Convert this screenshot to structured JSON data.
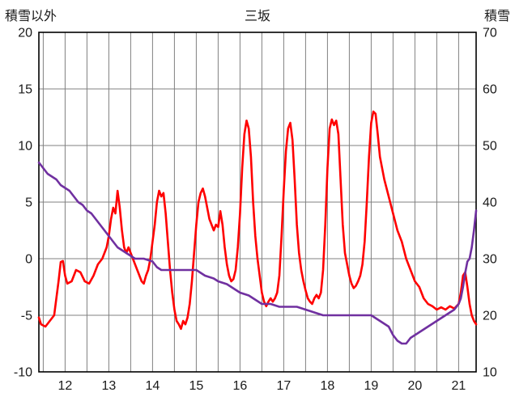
{
  "header": {
    "left_axis_title": "積雪以外",
    "title": "三坂",
    "right_axis_title": "積雪"
  },
  "chart_data": {
    "type": "line",
    "title": "三坂",
    "x_axis": {
      "min": 11.4,
      "max": 21.4,
      "ticks": [
        12,
        13,
        14,
        15,
        16,
        17,
        18,
        19,
        20,
        21
      ],
      "grid_step": 0.5
    },
    "y_left_axis": {
      "label": "積雪以外",
      "min": -10,
      "max": 20,
      "ticks": [
        20,
        15,
        10,
        5,
        0,
        -5,
        -10
      ]
    },
    "y_right_axis": {
      "label": "積雪",
      "min": 10,
      "max": 70,
      "ticks": [
        70,
        60,
        50,
        40,
        30,
        20,
        10
      ]
    },
    "grid": true,
    "grid_color": "#808080",
    "border_color": "#000000",
    "legend_position": "none",
    "series": [
      {
        "name": "積雪以外",
        "axis": "left",
        "color": "#FF0000",
        "points": [
          [
            11.4,
            -5.2
          ],
          [
            11.45,
            -5.8
          ],
          [
            11.55,
            -6.0
          ],
          [
            11.65,
            -5.5
          ],
          [
            11.75,
            -5.0
          ],
          [
            11.85,
            -2.0
          ],
          [
            11.9,
            -0.3
          ],
          [
            11.95,
            -0.2
          ],
          [
            12.0,
            -1.5
          ],
          [
            12.05,
            -2.2
          ],
          [
            12.15,
            -2.0
          ],
          [
            12.25,
            -1.0
          ],
          [
            12.35,
            -1.2
          ],
          [
            12.45,
            -2.0
          ],
          [
            12.55,
            -2.2
          ],
          [
            12.65,
            -1.5
          ],
          [
            12.75,
            -0.5
          ],
          [
            12.85,
            0.0
          ],
          [
            12.95,
            1.0
          ],
          [
            13.0,
            2.0
          ],
          [
            13.05,
            3.5
          ],
          [
            13.1,
            4.5
          ],
          [
            13.15,
            4.0
          ],
          [
            13.2,
            6.0
          ],
          [
            13.25,
            4.5
          ],
          [
            13.3,
            2.5
          ],
          [
            13.35,
            1.0
          ],
          [
            13.4,
            0.5
          ],
          [
            13.45,
            1.0
          ],
          [
            13.5,
            0.5
          ],
          [
            13.55,
            0.0
          ],
          [
            13.6,
            -0.5
          ],
          [
            13.65,
            -1.0
          ],
          [
            13.7,
            -1.5
          ],
          [
            13.75,
            -2.0
          ],
          [
            13.8,
            -2.2
          ],
          [
            13.85,
            -1.5
          ],
          [
            13.9,
            -1.0
          ],
          [
            13.95,
            0.0
          ],
          [
            14.0,
            1.5
          ],
          [
            14.05,
            3.0
          ],
          [
            14.1,
            5.0
          ],
          [
            14.15,
            6.0
          ],
          [
            14.2,
            5.5
          ],
          [
            14.25,
            5.8
          ],
          [
            14.3,
            4.0
          ],
          [
            14.35,
            1.5
          ],
          [
            14.4,
            -1.0
          ],
          [
            14.45,
            -3.0
          ],
          [
            14.5,
            -4.5
          ],
          [
            14.55,
            -5.5
          ],
          [
            14.6,
            -5.8
          ],
          [
            14.65,
            -6.2
          ],
          [
            14.7,
            -5.5
          ],
          [
            14.75,
            -5.8
          ],
          [
            14.8,
            -5.2
          ],
          [
            14.85,
            -4.0
          ],
          [
            14.9,
            -2.0
          ],
          [
            14.95,
            0.5
          ],
          [
            15.0,
            3.0
          ],
          [
            15.05,
            5.0
          ],
          [
            15.1,
            5.8
          ],
          [
            15.15,
            6.2
          ],
          [
            15.2,
            5.5
          ],
          [
            15.25,
            4.5
          ],
          [
            15.3,
            3.5
          ],
          [
            15.35,
            3.0
          ],
          [
            15.4,
            2.5
          ],
          [
            15.45,
            3.0
          ],
          [
            15.5,
            2.8
          ],
          [
            15.55,
            4.2
          ],
          [
            15.6,
            3.0
          ],
          [
            15.65,
            1.0
          ],
          [
            15.7,
            -0.5
          ],
          [
            15.75,
            -1.5
          ],
          [
            15.8,
            -2.0
          ],
          [
            15.85,
            -1.8
          ],
          [
            15.9,
            -1.0
          ],
          [
            15.95,
            1.0
          ],
          [
            16.0,
            4.0
          ],
          [
            16.05,
            8.0
          ],
          [
            16.1,
            11.0
          ],
          [
            16.15,
            12.2
          ],
          [
            16.2,
            11.5
          ],
          [
            16.25,
            9.0
          ],
          [
            16.3,
            5.0
          ],
          [
            16.35,
            2.0
          ],
          [
            16.4,
            0.0
          ],
          [
            16.45,
            -1.5
          ],
          [
            16.5,
            -3.0
          ],
          [
            16.55,
            -3.8
          ],
          [
            16.6,
            -4.2
          ],
          [
            16.65,
            -3.8
          ],
          [
            16.7,
            -3.5
          ],
          [
            16.75,
            -3.8
          ],
          [
            16.8,
            -3.5
          ],
          [
            16.85,
            -3.0
          ],
          [
            16.9,
            -1.5
          ],
          [
            16.95,
            2.0
          ],
          [
            17.0,
            6.0
          ],
          [
            17.05,
            9.5
          ],
          [
            17.1,
            11.5
          ],
          [
            17.15,
            12.0
          ],
          [
            17.2,
            10.5
          ],
          [
            17.25,
            7.0
          ],
          [
            17.3,
            3.0
          ],
          [
            17.35,
            0.5
          ],
          [
            17.4,
            -1.0
          ],
          [
            17.45,
            -2.0
          ],
          [
            17.5,
            -2.8
          ],
          [
            17.55,
            -3.5
          ],
          [
            17.6,
            -3.8
          ],
          [
            17.65,
            -4.0
          ],
          [
            17.7,
            -3.5
          ],
          [
            17.75,
            -3.2
          ],
          [
            17.8,
            -3.5
          ],
          [
            17.85,
            -3.0
          ],
          [
            17.9,
            -1.0
          ],
          [
            17.95,
            3.0
          ],
          [
            18.0,
            8.0
          ],
          [
            18.05,
            11.5
          ],
          [
            18.1,
            12.3
          ],
          [
            18.15,
            11.8
          ],
          [
            18.2,
            12.2
          ],
          [
            18.25,
            11.0
          ],
          [
            18.3,
            7.0
          ],
          [
            18.35,
            3.0
          ],
          [
            18.4,
            0.5
          ],
          [
            18.45,
            -0.5
          ],
          [
            18.5,
            -1.5
          ],
          [
            18.55,
            -2.2
          ],
          [
            18.6,
            -2.6
          ],
          [
            18.65,
            -2.4
          ],
          [
            18.7,
            -2.0
          ],
          [
            18.75,
            -1.5
          ],
          [
            18.8,
            -0.5
          ],
          [
            18.85,
            1.5
          ],
          [
            18.9,
            5.0
          ],
          [
            18.95,
            9.0
          ],
          [
            19.0,
            12.0
          ],
          [
            19.05,
            13.0
          ],
          [
            19.1,
            12.8
          ],
          [
            19.15,
            11.0
          ],
          [
            19.2,
            9.0
          ],
          [
            19.25,
            8.0
          ],
          [
            19.3,
            7.0
          ],
          [
            19.4,
            5.5
          ],
          [
            19.5,
            4.0
          ],
          [
            19.6,
            2.5
          ],
          [
            19.7,
            1.5
          ],
          [
            19.8,
            0.0
          ],
          [
            19.9,
            -1.0
          ],
          [
            20.0,
            -2.0
          ],
          [
            20.1,
            -2.5
          ],
          [
            20.2,
            -3.5
          ],
          [
            20.3,
            -4.0
          ],
          [
            20.4,
            -4.2
          ],
          [
            20.5,
            -4.5
          ],
          [
            20.6,
            -4.3
          ],
          [
            20.7,
            -4.5
          ],
          [
            20.8,
            -4.2
          ],
          [
            20.9,
            -4.4
          ],
          [
            21.0,
            -4.0
          ],
          [
            21.05,
            -3.0
          ],
          [
            21.1,
            -1.5
          ],
          [
            21.15,
            -1.2
          ],
          [
            21.2,
            -2.5
          ],
          [
            21.25,
            -4.0
          ],
          [
            21.3,
            -5.0
          ],
          [
            21.35,
            -5.5
          ],
          [
            21.4,
            -5.8
          ]
        ]
      },
      {
        "name": "積雪",
        "axis": "right",
        "color": "#7030A0",
        "points": [
          [
            11.4,
            47
          ],
          [
            11.5,
            46
          ],
          [
            11.6,
            45
          ],
          [
            11.7,
            44.5
          ],
          [
            11.8,
            44
          ],
          [
            11.9,
            43
          ],
          [
            12.0,
            42.5
          ],
          [
            12.1,
            42
          ],
          [
            12.2,
            41
          ],
          [
            12.3,
            40
          ],
          [
            12.4,
            39.5
          ],
          [
            12.5,
            38.5
          ],
          [
            12.6,
            38
          ],
          [
            12.7,
            37
          ],
          [
            12.8,
            36
          ],
          [
            12.9,
            35
          ],
          [
            13.0,
            34
          ],
          [
            13.1,
            33
          ],
          [
            13.2,
            32
          ],
          [
            13.3,
            31.5
          ],
          [
            13.4,
            31
          ],
          [
            13.5,
            30.5
          ],
          [
            13.6,
            30
          ],
          [
            13.8,
            30
          ],
          [
            14.0,
            29.5
          ],
          [
            14.1,
            28.5
          ],
          [
            14.2,
            28
          ],
          [
            14.4,
            28
          ],
          [
            14.6,
            28
          ],
          [
            14.8,
            28
          ],
          [
            15.0,
            28
          ],
          [
            15.1,
            27.5
          ],
          [
            15.2,
            27
          ],
          [
            15.4,
            26.5
          ],
          [
            15.5,
            26
          ],
          [
            15.7,
            25.5
          ],
          [
            15.8,
            25
          ],
          [
            16.0,
            24
          ],
          [
            16.2,
            23.5
          ],
          [
            16.3,
            23
          ],
          [
            16.5,
            22
          ],
          [
            16.7,
            22
          ],
          [
            16.9,
            21.5
          ],
          [
            17.1,
            21.5
          ],
          [
            17.3,
            21.5
          ],
          [
            17.5,
            21
          ],
          [
            17.7,
            20.5
          ],
          [
            17.9,
            20
          ],
          [
            18.1,
            20
          ],
          [
            18.3,
            20
          ],
          [
            18.5,
            20
          ],
          [
            18.7,
            20
          ],
          [
            18.9,
            20
          ],
          [
            19.0,
            20
          ],
          [
            19.1,
            19.5
          ],
          [
            19.2,
            19
          ],
          [
            19.3,
            18.5
          ],
          [
            19.4,
            18
          ],
          [
            19.5,
            16.5
          ],
          [
            19.6,
            15.5
          ],
          [
            19.7,
            15
          ],
          [
            19.8,
            15
          ],
          [
            19.9,
            16
          ],
          [
            20.0,
            16.5
          ],
          [
            20.1,
            17
          ],
          [
            20.2,
            17.5
          ],
          [
            20.3,
            18
          ],
          [
            20.4,
            18.5
          ],
          [
            20.5,
            19
          ],
          [
            20.6,
            19.5
          ],
          [
            20.7,
            20
          ],
          [
            20.8,
            20.5
          ],
          [
            20.9,
            21
          ],
          [
            21.0,
            22
          ],
          [
            21.05,
            23
          ],
          [
            21.1,
            25
          ],
          [
            21.15,
            27.5
          ],
          [
            21.2,
            29.5
          ],
          [
            21.25,
            30
          ],
          [
            21.3,
            32
          ],
          [
            21.35,
            35
          ],
          [
            21.4,
            38.5
          ]
        ]
      }
    ]
  }
}
